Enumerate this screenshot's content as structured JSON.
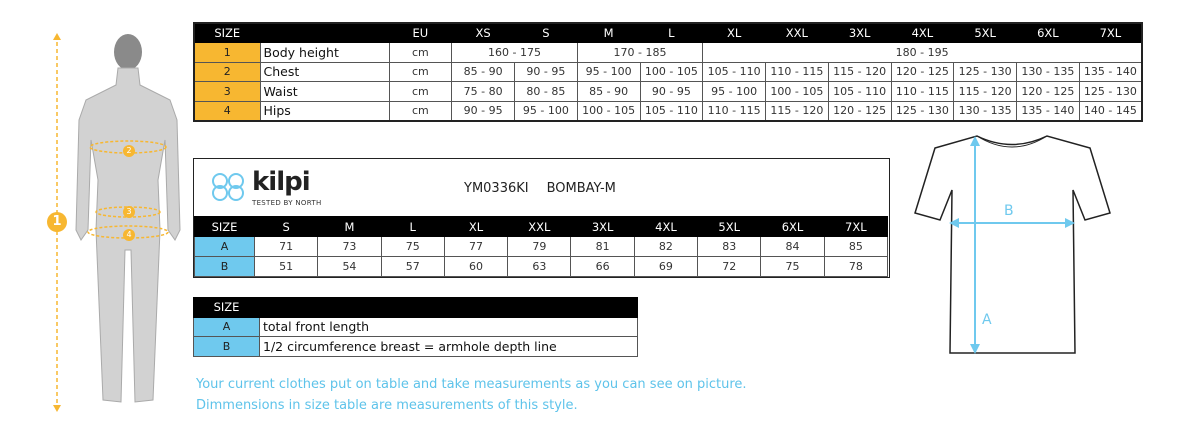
{
  "body_table": {
    "headers": [
      "SIZE",
      "",
      "EU",
      "XS",
      "S",
      "M",
      "L",
      "XL",
      "XXL",
      "3XL",
      "4XL",
      "5XL",
      "6XL",
      "7XL"
    ],
    "rows": [
      {
        "num": "1",
        "label": "Body height",
        "unit": "cm",
        "spans": [
          {
            "v": "160 - 175",
            "c": 2
          },
          {
            "v": "170 - 185",
            "c": 2
          },
          {
            "v": "180 - 195",
            "c": 7
          }
        ]
      },
      {
        "num": "2",
        "label": "Chest",
        "unit": "cm",
        "values": [
          "85 - 90",
          "90 - 95",
          "95 - 100",
          "100 - 105",
          "105 - 110",
          "110 - 115",
          "115 - 120",
          "120 - 125",
          "125 - 130",
          "130 - 135",
          "135 - 140"
        ]
      },
      {
        "num": "3",
        "label": "Waist",
        "unit": "cm",
        "values": [
          "75 - 80",
          "80 - 85",
          "85 - 90",
          "90 - 95",
          "95 - 100",
          "100 - 105",
          "105 - 110",
          "110 - 115",
          "115 - 120",
          "120 - 125",
          "125 - 130"
        ]
      },
      {
        "num": "4",
        "label": "Hips",
        "unit": "cm",
        "values": [
          "90 - 95",
          "95 - 100",
          "100 - 105",
          "105 - 110",
          "110 - 115",
          "115 - 120",
          "120 - 125",
          "125 - 130",
          "130 - 135",
          "135 - 140",
          "140 - 145"
        ]
      }
    ]
  },
  "brand": {
    "name": "kilpi",
    "tagline": "TESTED BY NORTH"
  },
  "product": {
    "code": "YM0336KI",
    "name": "BOMBAY-M"
  },
  "garment_table": {
    "headers": [
      "SIZE",
      "S",
      "M",
      "L",
      "XL",
      "XXL",
      "3XL",
      "4XL",
      "5XL",
      "6XL",
      "7XL"
    ],
    "rows": [
      {
        "key": "A",
        "values": [
          "71",
          "73",
          "75",
          "77",
          "79",
          "81",
          "82",
          "83",
          "84",
          "85"
        ]
      },
      {
        "key": "B",
        "values": [
          "51",
          "54",
          "57",
          "60",
          "63",
          "66",
          "69",
          "72",
          "75",
          "78"
        ]
      }
    ]
  },
  "legend_table": {
    "header": "SIZE",
    "rows": [
      {
        "key": "A",
        "desc": "total front length"
      },
      {
        "key": "B",
        "desc": "1/2 circumference breast = armhole depth line"
      }
    ]
  },
  "figure": {
    "markers": [
      "1",
      "2",
      "3",
      "4"
    ]
  },
  "shirt": {
    "labels": [
      "A",
      "B"
    ]
  },
  "notes": [
    "Your current clothes put on table and take measurements as you can see on picture.",
    "Dimmensions in size table are measurements of this style."
  ],
  "colors": {
    "yellow": "#f7b731",
    "blue": "#6fc9ee",
    "note": "#5ec3ea"
  }
}
